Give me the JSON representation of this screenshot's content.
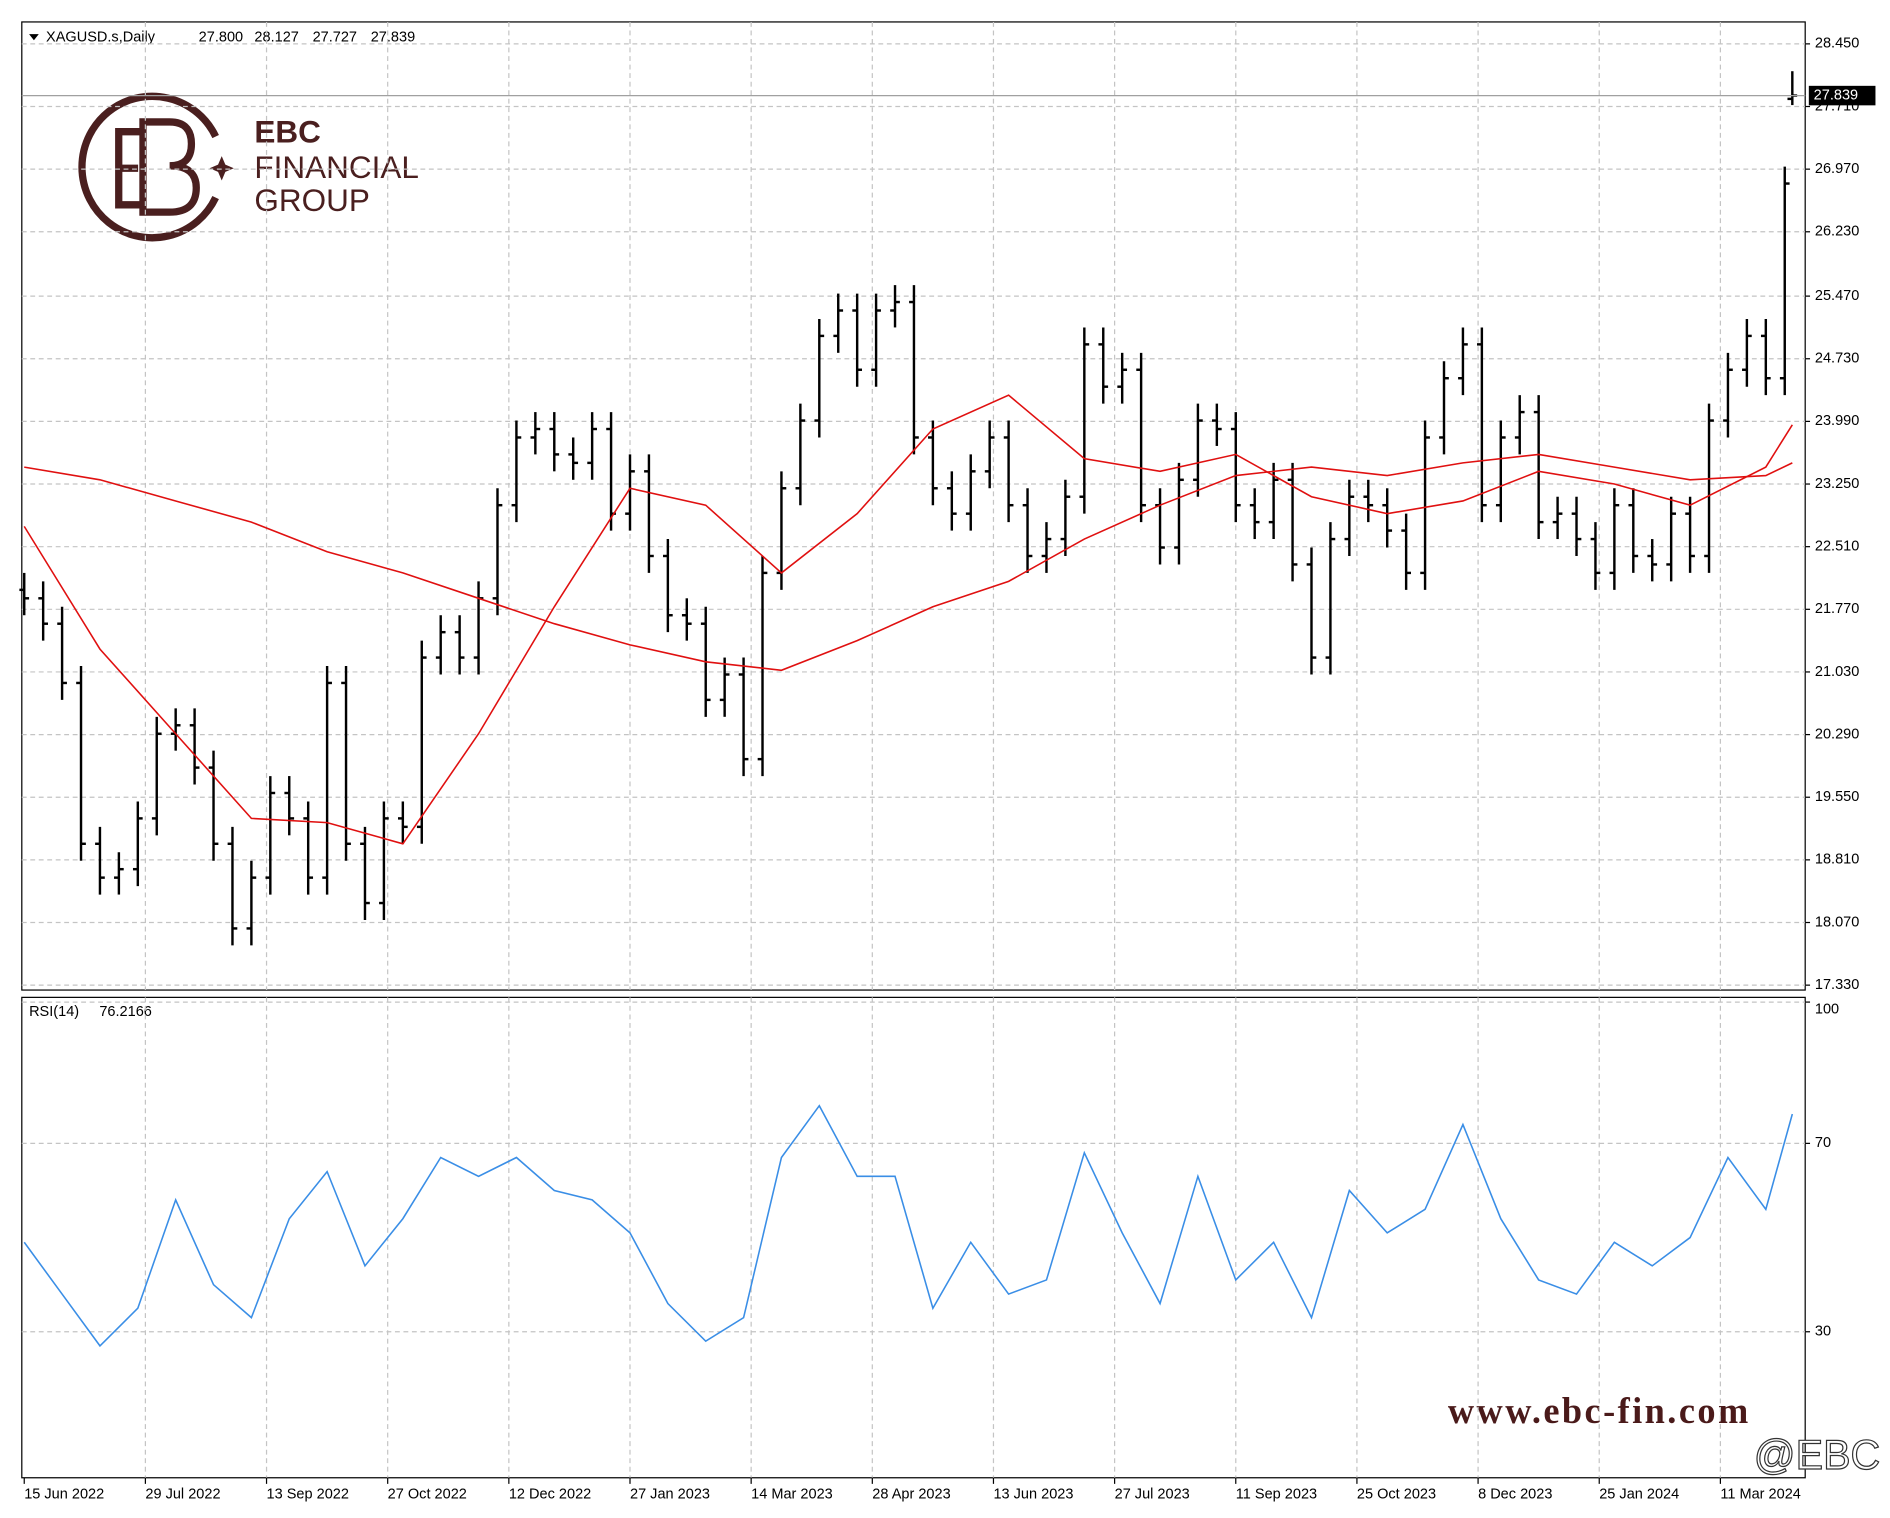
{
  "logo": {
    "name": "EBC",
    "line1": "FINANCIAL",
    "line2": "GROUP"
  },
  "watermark": "www.ebc-fin.com",
  "handle": "@EBC",
  "chart_data": [
    {
      "type": "ohlc",
      "title": "XAGUSD.s,Daily",
      "last_labels": {
        "open": "27.800",
        "high": "28.127",
        "low": "27.727",
        "close": "27.839"
      },
      "color": "#000000",
      "x": [
        0,
        5,
        10,
        15,
        20,
        25,
        30,
        35,
        40,
        45,
        50,
        55,
        60,
        65,
        70,
        75,
        80,
        85,
        90,
        95,
        100,
        105,
        110,
        115,
        120,
        125,
        130,
        135,
        140,
        145,
        150,
        155,
        160,
        165,
        170,
        175,
        180,
        185,
        190,
        195,
        200,
        205,
        210,
        215,
        220,
        225,
        230,
        235,
        240,
        245,
        250,
        255,
        260,
        265,
        270,
        275,
        280,
        285,
        290,
        295,
        300,
        305,
        310,
        315,
        320,
        325,
        330,
        335,
        340,
        345,
        350,
        355,
        360,
        365,
        370,
        375,
        380,
        385,
        390,
        395,
        400,
        405,
        410,
        415,
        420,
        425,
        430,
        435,
        440,
        445,
        450,
        455,
        460,
        465,
        467
      ],
      "open": [
        22.0,
        21.9,
        21.6,
        20.9,
        19.0,
        18.6,
        18.7,
        19.3,
        20.3,
        20.4,
        19.9,
        19.0,
        18.0,
        18.6,
        19.6,
        19.3,
        18.6,
        20.9,
        19.0,
        18.3,
        19.3,
        19.2,
        21.2,
        21.5,
        21.2,
        21.9,
        23.0,
        23.8,
        23.9,
        23.6,
        23.5,
        23.9,
        22.9,
        23.4,
        22.4,
        21.7,
        21.6,
        20.7,
        21.0,
        20.0,
        22.2,
        23.2,
        24.0,
        25.0,
        25.3,
        24.6,
        25.3,
        25.4,
        23.8,
        23.2,
        22.9,
        23.4,
        23.8,
        23.0,
        22.4,
        22.6,
        23.1,
        24.9,
        24.4,
        24.6,
        23.0,
        22.5,
        23.3,
        24.0,
        23.9,
        23.0,
        22.8,
        23.3,
        22.3,
        21.2,
        22.6,
        23.1,
        23.0,
        22.7,
        22.2,
        23.8,
        24.5,
        24.9,
        23.0,
        23.8,
        24.1,
        22.8,
        22.9,
        22.6,
        22.2,
        23.0,
        22.4,
        22.3,
        22.9,
        22.4,
        24.0,
        24.6,
        25.0,
        24.5,
        27.8
      ],
      "high": [
        22.2,
        22.1,
        21.8,
        21.1,
        19.2,
        18.9,
        19.5,
        20.5,
        20.6,
        20.6,
        20.1,
        19.2,
        18.8,
        19.8,
        19.8,
        19.5,
        21.1,
        21.1,
        19.2,
        19.5,
        19.5,
        21.4,
        21.7,
        21.7,
        22.1,
        23.2,
        24.0,
        24.1,
        24.1,
        23.8,
        24.1,
        24.1,
        23.6,
        23.6,
        22.6,
        21.9,
        21.8,
        21.2,
        21.2,
        22.4,
        23.4,
        24.2,
        25.2,
        25.5,
        25.5,
        25.5,
        25.6,
        25.6,
        24.0,
        23.4,
        23.6,
        24.0,
        24.0,
        23.2,
        22.8,
        23.3,
        25.1,
        25.1,
        24.8,
        24.8,
        23.2,
        23.5,
        24.2,
        24.2,
        24.1,
        23.2,
        23.5,
        23.5,
        22.5,
        22.8,
        23.3,
        23.3,
        23.2,
        22.9,
        24.0,
        24.7,
        25.1,
        25.1,
        24.0,
        24.3,
        24.3,
        23.1,
        23.1,
        22.8,
        23.2,
        23.2,
        22.6,
        23.1,
        23.1,
        24.2,
        24.8,
        25.2,
        25.2,
        27.0,
        28.127
      ],
      "low": [
        21.7,
        21.4,
        20.7,
        18.8,
        18.4,
        18.4,
        18.5,
        19.1,
        20.1,
        19.7,
        18.8,
        17.8,
        17.8,
        18.4,
        19.1,
        18.4,
        18.4,
        18.8,
        18.1,
        18.1,
        19.0,
        19.0,
        21.0,
        21.0,
        21.0,
        21.7,
        22.8,
        23.6,
        23.4,
        23.3,
        23.3,
        22.7,
        22.7,
        22.2,
        21.5,
        21.4,
        20.5,
        20.5,
        19.8,
        19.8,
        22.0,
        23.0,
        23.8,
        24.8,
        24.4,
        24.4,
        25.1,
        23.6,
        23.0,
        22.7,
        22.7,
        23.2,
        22.8,
        22.2,
        22.2,
        22.4,
        22.9,
        24.2,
        24.2,
        22.8,
        22.3,
        22.3,
        23.1,
        23.7,
        22.8,
        22.6,
        22.6,
        22.1,
        21.0,
        21.0,
        22.4,
        22.8,
        22.5,
        22.0,
        22.0,
        23.6,
        24.3,
        22.8,
        22.8,
        23.6,
        22.6,
        22.6,
        22.4,
        22.0,
        22.0,
        22.2,
        22.1,
        22.1,
        22.2,
        22.2,
        23.8,
        24.4,
        24.3,
        24.3,
        27.727
      ],
      "close": [
        21.9,
        21.6,
        20.9,
        19.0,
        18.6,
        18.7,
        19.3,
        20.3,
        20.4,
        19.9,
        19.0,
        18.0,
        18.6,
        19.6,
        19.3,
        18.6,
        20.9,
        19.0,
        18.3,
        19.3,
        19.2,
        21.2,
        21.5,
        21.2,
        21.9,
        23.0,
        23.8,
        23.9,
        23.6,
        23.5,
        23.9,
        22.9,
        23.4,
        22.4,
        21.7,
        21.6,
        20.7,
        21.0,
        20.0,
        22.2,
        23.2,
        24.0,
        25.0,
        25.3,
        24.6,
        25.3,
        25.4,
        23.8,
        23.2,
        22.9,
        23.4,
        23.8,
        23.0,
        22.4,
        22.6,
        23.1,
        24.9,
        24.4,
        24.6,
        23.0,
        22.5,
        23.3,
        24.0,
        23.9,
        23.0,
        22.8,
        23.3,
        22.3,
        21.2,
        22.6,
        23.1,
        23.0,
        22.7,
        22.2,
        23.8,
        24.5,
        24.9,
        23.0,
        23.8,
        24.1,
        22.8,
        22.9,
        22.6,
        22.2,
        23.0,
        22.4,
        22.3,
        22.9,
        22.4,
        24.0,
        24.6,
        25.0,
        24.5,
        26.8,
        27.839
      ],
      "series": [
        {
          "color": "#e01010",
          "x": [
            0,
            20,
            40,
            60,
            80,
            100,
            120,
            140,
            160,
            180,
            200,
            220,
            240,
            260,
            280,
            300,
            320,
            340,
            360,
            380,
            400,
            420,
            440,
            460,
            467
          ],
          "values": [
            22.75,
            21.3,
            20.3,
            19.3,
            19.25,
            19.0,
            20.3,
            21.8,
            23.2,
            23.0,
            22.2,
            22.9,
            23.9,
            24.3,
            23.55,
            23.4,
            23.6,
            23.1,
            22.9,
            23.05,
            23.4,
            23.25,
            23.0,
            23.45,
            23.95
          ]
        },
        {
          "color": "#e01010",
          "x": [
            0,
            20,
            40,
            60,
            80,
            100,
            120,
            140,
            160,
            180,
            200,
            220,
            240,
            260,
            280,
            300,
            320,
            340,
            360,
            380,
            400,
            420,
            440,
            460,
            467
          ],
          "values": [
            23.45,
            23.3,
            23.05,
            22.8,
            22.45,
            22.2,
            21.9,
            21.6,
            21.35,
            21.15,
            21.05,
            21.4,
            21.8,
            22.1,
            22.6,
            23.0,
            23.35,
            23.45,
            23.35,
            23.5,
            23.6,
            23.45,
            23.3,
            23.35,
            23.5
          ]
        }
      ],
      "xlim": [
        -0.64,
        470.4
      ],
      "xticks": [
        {
          "value": 0,
          "label": "15 Jun 2022"
        },
        {
          "value": 32,
          "label": "29 Jul 2022"
        },
        {
          "value": 64,
          "label": "13 Sep 2022"
        },
        {
          "value": 96,
          "label": "27 Oct 2022"
        },
        {
          "value": 128,
          "label": "12 Dec 2022"
        },
        {
          "value": 160,
          "label": "27 Jan 2023"
        },
        {
          "value": 192,
          "label": "14 Mar 2023"
        },
        {
          "value": 224,
          "label": "28 Apr 2023"
        },
        {
          "value": 256,
          "label": "13 Jun 2023"
        },
        {
          "value": 288,
          "label": "27 Jul 2023"
        },
        {
          "value": 320,
          "label": "11 Sep 2023"
        },
        {
          "value": 352,
          "label": "25 Oct 2023"
        },
        {
          "value": 384,
          "label": "8 Dec 2023"
        },
        {
          "value": 416,
          "label": "25 Jan 2024"
        },
        {
          "value": 448,
          "label": "11 Mar 2024"
        }
      ],
      "ylim": [
        17.272,
        28.709
      ],
      "yticks": [
        {
          "value": 28.45,
          "label": "28.450"
        },
        {
          "value": 27.71,
          "label": "27.710"
        },
        {
          "value": 26.97,
          "label": "26.970"
        },
        {
          "value": 26.23,
          "label": "26.230"
        },
        {
          "value": 25.47,
          "label": "25.470"
        },
        {
          "value": 24.73,
          "label": "24.730"
        },
        {
          "value": 23.99,
          "label": "23.990"
        },
        {
          "value": 23.25,
          "label": "23.250"
        },
        {
          "value": 22.51,
          "label": "22.510"
        },
        {
          "value": 21.77,
          "label": "21.770"
        },
        {
          "value": 21.03,
          "label": "21.030"
        },
        {
          "value": 20.29,
          "label": "20.290"
        },
        {
          "value": 19.55,
          "label": "19.550"
        },
        {
          "value": 18.81,
          "label": "18.810"
        },
        {
          "value": 18.07,
          "label": "18.070"
        },
        {
          "value": 17.33,
          "label": "17.330"
        }
      ],
      "grid": true
    },
    {
      "type": "line",
      "title": "RSI(14)",
      "color": "#3a8ee6",
      "x": [
        0,
        10,
        20,
        30,
        40,
        50,
        60,
        70,
        80,
        90,
        100,
        110,
        120,
        130,
        140,
        150,
        160,
        170,
        180,
        190,
        200,
        210,
        220,
        230,
        240,
        250,
        260,
        270,
        280,
        290,
        300,
        310,
        320,
        330,
        340,
        350,
        360,
        370,
        380,
        390,
        400,
        410,
        420,
        430,
        440,
        450,
        460,
        467
      ],
      "values": [
        49,
        38,
        27,
        35,
        58,
        40,
        33,
        54,
        64,
        44,
        54,
        67,
        63,
        67,
        60,
        58,
        51,
        36,
        28,
        33,
        67,
        78,
        63,
        63,
        35,
        49,
        38,
        41,
        68,
        51,
        36,
        63,
        41,
        49,
        33,
        60,
        51,
        56,
        74,
        54,
        41,
        38,
        49,
        44,
        50,
        67,
        56,
        76.2166
      ],
      "xlim": [
        -0.64,
        470.4
      ],
      "ylim": [
        -1,
        101
      ],
      "yticks": [
        30,
        70,
        100
      ],
      "grid": true
    }
  ]
}
